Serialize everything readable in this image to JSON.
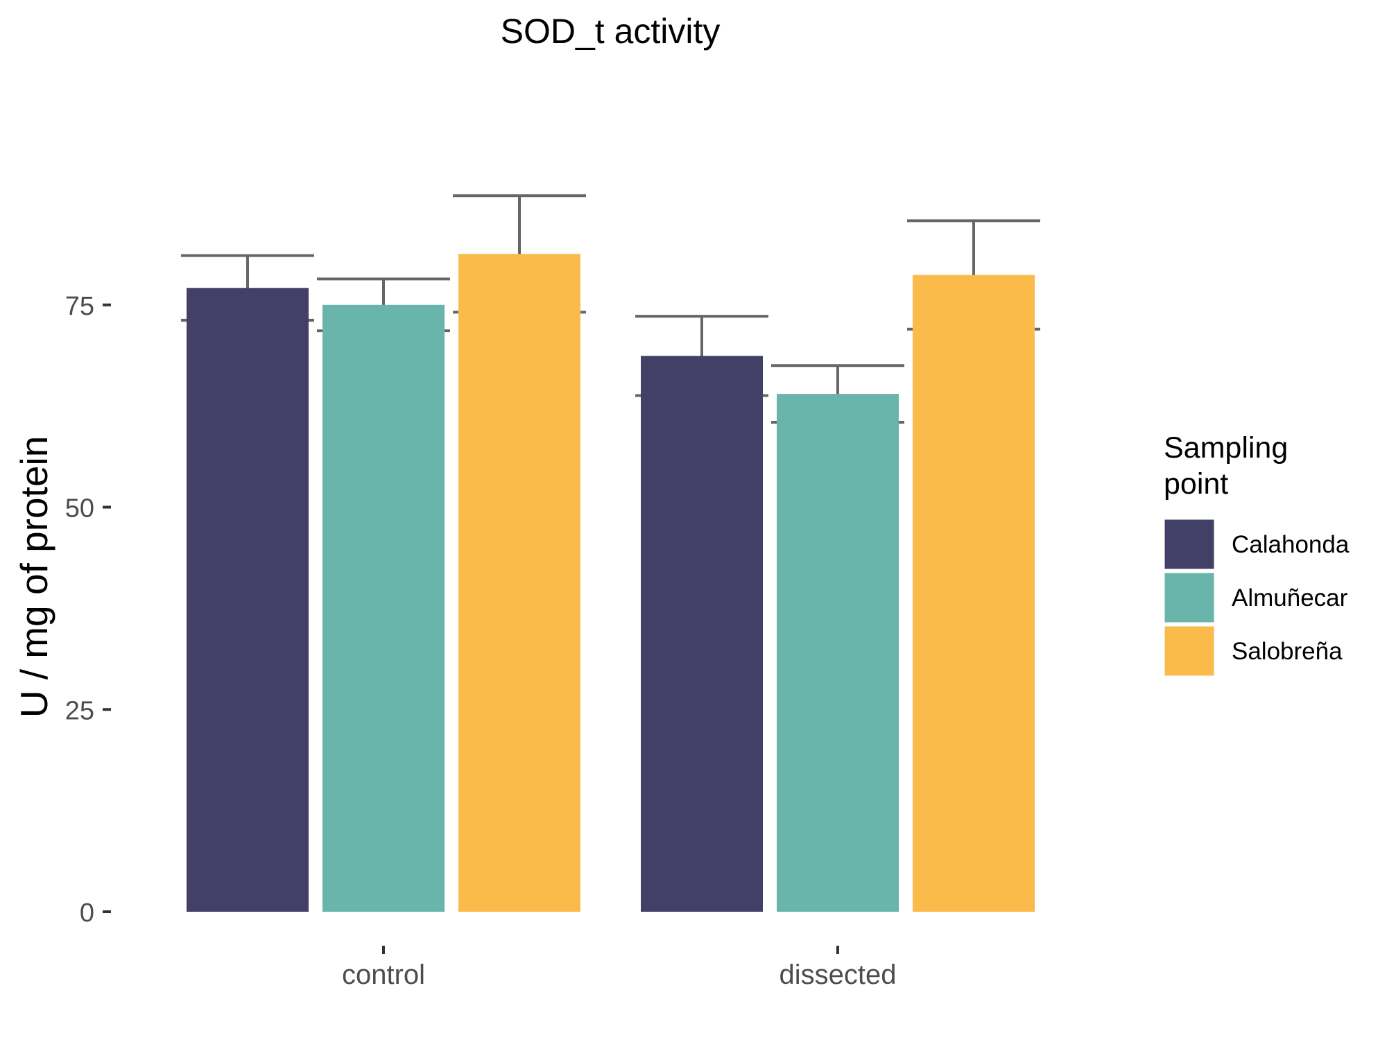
{
  "chart_data": {
    "type": "bar",
    "title": "SOD_t activity",
    "xlabel": "",
    "ylabel": "U / mg  of protein",
    "categories": [
      "control",
      "dissected"
    ],
    "y_ticks": [
      0,
      25,
      50,
      75
    ],
    "ylim": [
      0,
      100
    ],
    "grid": false,
    "error_bars": true,
    "legend": {
      "title": "Sampling point",
      "title_lines": [
        "Sampling",
        "point"
      ],
      "position": "right"
    },
    "series": [
      {
        "name": "Calahonda",
        "color": "#424066",
        "values": [
          77.1,
          68.7
        ],
        "error": [
          4.0,
          4.9
        ]
      },
      {
        "name": "Almuñecar",
        "color": "#69B4AB",
        "values": [
          75.0,
          64.0
        ],
        "error": [
          3.2,
          3.5
        ]
      },
      {
        "name": "Salobreña",
        "color": "#FABB4B",
        "values": [
          81.3,
          78.7
        ],
        "error": [
          7.2,
          6.7
        ]
      }
    ]
  }
}
